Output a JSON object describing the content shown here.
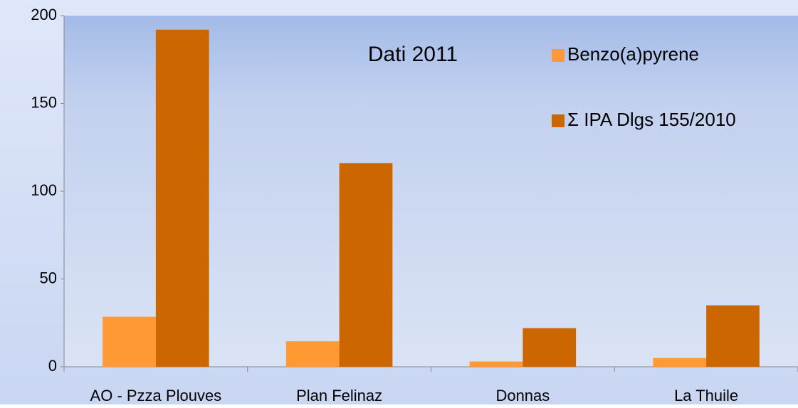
{
  "chart_data": {
    "type": "bar",
    "title": "Dati 2011",
    "categories": [
      "AO - Pzza Plouves",
      "Plan Felinaz",
      "Donnas",
      "La Thuile"
    ],
    "series": [
      {
        "name": "Benzo(a)pyrene",
        "color": "#ff9933",
        "values": [
          28.5,
          14.5,
          3,
          5
        ]
      },
      {
        "name": "Σ IPA Dlgs 155/2010",
        "color": "#cc6600",
        "values": [
          192,
          116,
          22,
          35
        ]
      }
    ],
    "ylim": [
      0,
      200
    ],
    "yticks": [
      0,
      50,
      100,
      150,
      200
    ]
  }
}
